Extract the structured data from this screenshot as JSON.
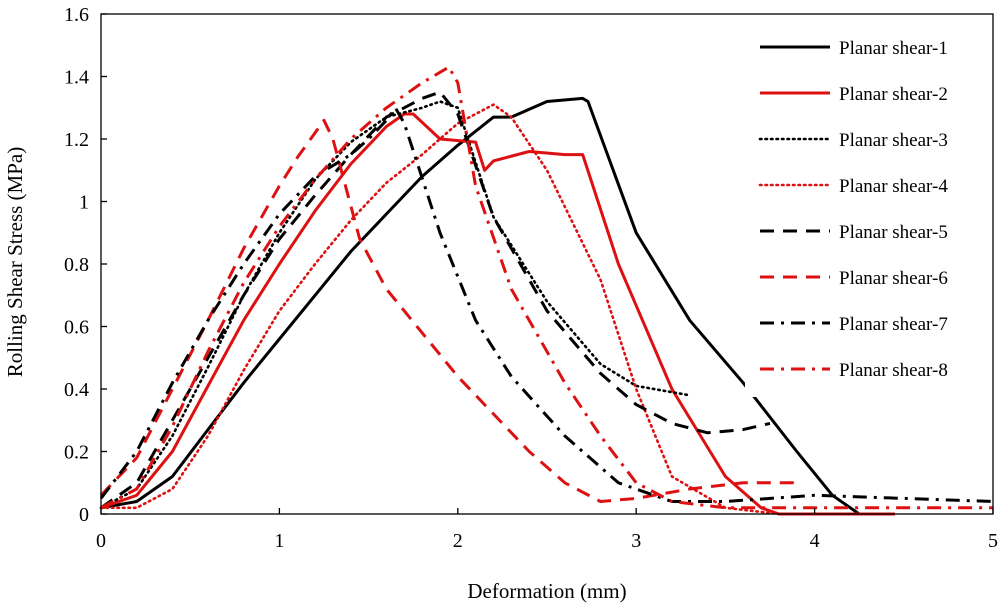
{
  "chart_data": {
    "type": "line",
    "title": "",
    "xlabel": "Deformation (mm)",
    "ylabel": "Rolling Shear Stress (MPa)",
    "xlim": [
      0,
      5
    ],
    "ylim": [
      0,
      1.6
    ],
    "x_ticks": [
      "0",
      "1",
      "2",
      "3",
      "4",
      "5"
    ],
    "y_ticks": [
      "0",
      "0.2",
      "0.4",
      "0.6",
      "0.8",
      "1",
      "1.2",
      "1.4",
      "1.6"
    ],
    "grid": false,
    "legend_position": "top-right",
    "series": [
      {
        "name": "Planar shear-1",
        "color": "#000000",
        "style": "solid",
        "x": [
          0,
          0.2,
          0.4,
          0.6,
          0.8,
          1.0,
          1.2,
          1.4,
          1.6,
          1.8,
          2.0,
          2.2,
          2.3,
          2.5,
          2.7,
          2.73,
          3.0,
          3.3,
          3.6,
          3.9,
          4.1,
          4.25,
          4.3
        ],
        "y": [
          0.02,
          0.04,
          0.12,
          0.27,
          0.42,
          0.56,
          0.7,
          0.84,
          0.96,
          1.08,
          1.18,
          1.27,
          1.27,
          1.32,
          1.33,
          1.32,
          0.9,
          0.62,
          0.42,
          0.2,
          0.06,
          0.0,
          0.0
        ]
      },
      {
        "name": "Planar shear-2",
        "color": "#dd1111",
        "style": "solid",
        "x": [
          0,
          0.2,
          0.4,
          0.6,
          0.8,
          1.0,
          1.2,
          1.4,
          1.6,
          1.7,
          1.75,
          1.9,
          2.1,
          2.15,
          2.2,
          2.4,
          2.6,
          2.7,
          2.9,
          3.2,
          3.5,
          3.7,
          3.8,
          4.2,
          4.45
        ],
        "y": [
          0.02,
          0.06,
          0.2,
          0.41,
          0.62,
          0.8,
          0.97,
          1.12,
          1.24,
          1.28,
          1.28,
          1.2,
          1.19,
          1.1,
          1.13,
          1.16,
          1.15,
          1.15,
          0.8,
          0.4,
          0.12,
          0.02,
          0.0,
          0.0,
          0.0
        ]
      },
      {
        "name": "Planar shear-3",
        "color": "#000000",
        "style": "dotted",
        "x": [
          0,
          0.2,
          0.4,
          0.6,
          0.8,
          1.0,
          1.2,
          1.4,
          1.6,
          1.8,
          1.9,
          2.0,
          2.2,
          2.5,
          2.8,
          3.0,
          3.3
        ],
        "y": [
          0.02,
          0.08,
          0.25,
          0.47,
          0.7,
          0.9,
          1.07,
          1.19,
          1.27,
          1.3,
          1.32,
          1.3,
          0.95,
          0.68,
          0.48,
          0.41,
          0.38
        ]
      },
      {
        "name": "Planar shear-4",
        "color": "#dd1111",
        "style": "dotted",
        "x": [
          0,
          0.2,
          0.4,
          0.6,
          0.8,
          1.0,
          1.2,
          1.4,
          1.6,
          1.8,
          2.0,
          2.2,
          2.3,
          2.5,
          2.8,
          3.0,
          3.2,
          3.5,
          3.8,
          4.0,
          4.2
        ],
        "y": [
          0.02,
          0.02,
          0.08,
          0.25,
          0.46,
          0.65,
          0.8,
          0.94,
          1.06,
          1.15,
          1.25,
          1.31,
          1.27,
          1.1,
          0.75,
          0.4,
          0.12,
          0.02,
          0.0,
          0.0,
          0.0
        ]
      },
      {
        "name": "Planar shear-5",
        "color": "#000000",
        "style": "dashed",
        "x": [
          0,
          0.2,
          0.4,
          0.6,
          0.8,
          1.0,
          1.2,
          1.4,
          1.6,
          1.8,
          1.9,
          2.0,
          2.2,
          2.5,
          2.8,
          3.0,
          3.2,
          3.4,
          3.6,
          3.75
        ],
        "y": [
          0.02,
          0.1,
          0.3,
          0.5,
          0.7,
          0.88,
          1.02,
          1.15,
          1.27,
          1.33,
          1.35,
          1.28,
          0.95,
          0.65,
          0.45,
          0.35,
          0.29,
          0.26,
          0.27,
          0.29
        ]
      },
      {
        "name": "Planar shear-6",
        "color": "#dd1111",
        "style": "dashed",
        "x": [
          0,
          0.2,
          0.4,
          0.6,
          0.8,
          1.0,
          1.1,
          1.2,
          1.25,
          1.3,
          1.45,
          1.6,
          1.8,
          2.0,
          2.2,
          2.4,
          2.6,
          2.8,
          3.0,
          3.3,
          3.6,
          3.9
        ],
        "y": [
          0.06,
          0.18,
          0.4,
          0.62,
          0.85,
          1.05,
          1.14,
          1.22,
          1.26,
          1.2,
          0.88,
          0.72,
          0.58,
          0.44,
          0.32,
          0.2,
          0.1,
          0.04,
          0.05,
          0.08,
          0.1,
          0.1
        ]
      },
      {
        "name": "Planar shear-7",
        "color": "#000000",
        "style": "dashdot",
        "x": [
          0,
          0.2,
          0.4,
          0.6,
          0.8,
          1.0,
          1.2,
          1.4,
          1.5,
          1.6,
          1.65,
          1.7,
          1.9,
          2.1,
          2.3,
          2.6,
          2.9,
          3.2,
          3.5,
          4.0,
          4.5,
          5.0
        ],
        "y": [
          0.05,
          0.2,
          0.42,
          0.62,
          0.8,
          0.96,
          1.08,
          1.15,
          1.2,
          1.26,
          1.3,
          1.25,
          0.9,
          0.62,
          0.44,
          0.25,
          0.1,
          0.04,
          0.04,
          0.06,
          0.05,
          0.04
        ]
      },
      {
        "name": "Planar shear-8",
        "color": "#dd1111",
        "style": "dashdot",
        "x": [
          0,
          0.2,
          0.4,
          0.6,
          0.8,
          1.0,
          1.2,
          1.4,
          1.6,
          1.8,
          1.95,
          2.0,
          2.1,
          2.3,
          2.6,
          2.8,
          3.0,
          3.2,
          3.5,
          4.0,
          4.5,
          5.0
        ],
        "y": [
          0.02,
          0.08,
          0.28,
          0.52,
          0.74,
          0.92,
          1.07,
          1.2,
          1.3,
          1.38,
          1.43,
          1.38,
          1.05,
          0.72,
          0.42,
          0.25,
          0.1,
          0.04,
          0.02,
          0.02,
          0.02,
          0.02
        ]
      }
    ]
  }
}
